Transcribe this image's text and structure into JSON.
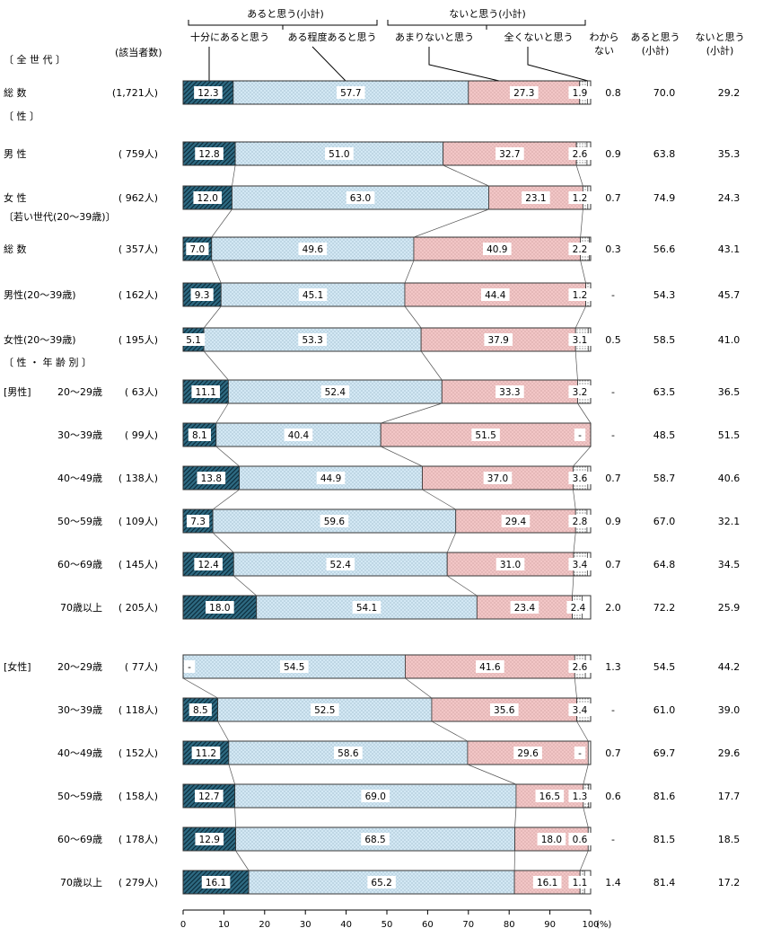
{
  "chart_data": {
    "type": "bar",
    "orientation": "horizontal",
    "stacked": true,
    "percent_stacked": true,
    "xlim": [
      0,
      100
    ],
    "x_ticks": [
      "0",
      "10",
      "20",
      "30",
      "40",
      "50",
      "60",
      "70",
      "80",
      "90",
      "100"
    ],
    "x_unit": "(%)",
    "header": {
      "respondents_label": "(該当者数)",
      "group_aru": "あると思う(小計)",
      "group_nai": "ないと思う(小計)",
      "col_aru_subtotal": [
        "あると思う",
        "(小計)"
      ],
      "col_nai_subtotal": [
        "ないと思う",
        "(小計)"
      ],
      "col_wakaranai": [
        "わから",
        "ない"
      ]
    },
    "series": [
      {
        "name": "十分にあると思う",
        "color": "#2e6a82",
        "pattern": "diagonal"
      },
      {
        "name": "ある程度あると思う",
        "color": "#d3e8f4",
        "pattern": "dots"
      },
      {
        "name": "あまりないと思う",
        "color": "#f2c6c6",
        "pattern": "dots"
      },
      {
        "name": "全くないと思う",
        "color": "#ffffff",
        "pattern": "dots"
      }
    ],
    "sections": [
      {
        "label": "〔 全 世 代 〕",
        "rows": [
          {
            "category": "総 数",
            "n": "(1,721人)",
            "values": [
              "12.3",
              "57.7",
              "27.3",
              "1.9"
            ],
            "dont_know": "0.8",
            "aru_total": "70.0",
            "nai_total": "29.2"
          }
        ]
      },
      {
        "label": "〔 性 〕",
        "rows": [
          {
            "category": "男 性",
            "n": "( 759人)",
            "values": [
              "12.8",
              "51.0",
              "32.7",
              "2.6"
            ],
            "dont_know": "0.9",
            "aru_total": "63.8",
            "nai_total": "35.3"
          },
          {
            "category": "女 性",
            "n": "( 962人)",
            "values": [
              "12.0",
              "63.0",
              "23.1",
              "1.2"
            ],
            "dont_know": "0.7",
            "aru_total": "74.9",
            "nai_total": "24.3"
          }
        ]
      },
      {
        "label": "〔若い世代(20～39歳)〕",
        "rows": [
          {
            "category": "総 数",
            "n": "( 357人)",
            "values": [
              "7.0",
              "49.6",
              "40.9",
              "2.2"
            ],
            "dont_know": "0.3",
            "aru_total": "56.6",
            "nai_total": "43.1"
          },
          {
            "category": "男性(20～39歳)",
            "n": "( 162人)",
            "values": [
              "9.3",
              "45.1",
              "44.4",
              "1.2"
            ],
            "dont_know": "-",
            "aru_total": "54.3",
            "nai_total": "45.7"
          },
          {
            "category": "女性(20～39歳)",
            "n": "( 195人)",
            "values": [
              "5.1",
              "53.3",
              "37.9",
              "3.1"
            ],
            "dont_know": "0.5",
            "aru_total": "58.5",
            "nai_total": "41.0"
          }
        ]
      },
      {
        "label": "〔 性 ・ 年 齢 別 〕",
        "rows": [
          {
            "group": "[男性]",
            "category": "20～29歳",
            "n": "(  63人)",
            "values": [
              "11.1",
              "52.4",
              "33.3",
              "3.2"
            ],
            "dont_know": "-",
            "aru_total": "63.5",
            "nai_total": "36.5"
          },
          {
            "category": "30～39歳",
            "n": "(  99人)",
            "values": [
              "8.1",
              "40.4",
              "51.5",
              "-"
            ],
            "dont_know": "-",
            "aru_total": "48.5",
            "nai_total": "51.5"
          },
          {
            "category": "40～49歳",
            "n": "( 138人)",
            "values": [
              "13.8",
              "44.9",
              "37.0",
              "3.6"
            ],
            "dont_know": "0.7",
            "aru_total": "58.7",
            "nai_total": "40.6"
          },
          {
            "category": "50～59歳",
            "n": "( 109人)",
            "values": [
              "7.3",
              "59.6",
              "29.4",
              "2.8"
            ],
            "dont_know": "0.9",
            "aru_total": "67.0",
            "nai_total": "32.1"
          },
          {
            "category": "60～69歳",
            "n": "( 145人)",
            "values": [
              "12.4",
              "52.4",
              "31.0",
              "3.4"
            ],
            "dont_know": "0.7",
            "aru_total": "64.8",
            "nai_total": "34.5"
          },
          {
            "category": "70歳以上",
            "n": "( 205人)",
            "values": [
              "18.0",
              "54.1",
              "23.4",
              "2.4"
            ],
            "dont_know": "2.0",
            "aru_total": "72.2",
            "nai_total": "25.9"
          },
          {
            "group": "[女性]",
            "category": "20～29歳",
            "n": "(  77人)",
            "values": [
              "-",
              "54.5",
              "41.6",
              "2.6"
            ],
            "dont_know": "1.3",
            "aru_total": "54.5",
            "nai_total": "44.2"
          },
          {
            "category": "30～39歳",
            "n": "( 118人)",
            "values": [
              "8.5",
              "52.5",
              "35.6",
              "3.4"
            ],
            "dont_know": "-",
            "aru_total": "61.0",
            "nai_total": "39.0"
          },
          {
            "category": "40～49歳",
            "n": "( 152人)",
            "values": [
              "11.2",
              "58.6",
              "29.6",
              "-"
            ],
            "dont_know": "0.7",
            "aru_total": "69.7",
            "nai_total": "29.6"
          },
          {
            "category": "50～59歳",
            "n": "( 158人)",
            "values": [
              "12.7",
              "69.0",
              "16.5",
              "1.3"
            ],
            "dont_know": "0.6",
            "aru_total": "81.6",
            "nai_total": "17.7"
          },
          {
            "category": "60～69歳",
            "n": "( 178人)",
            "values": [
              "12.9",
              "68.5",
              "18.0",
              "0.6"
            ],
            "dont_know": "-",
            "aru_total": "81.5",
            "nai_total": "18.5"
          },
          {
            "category": "70歳以上",
            "n": "( 279人)",
            "values": [
              "16.1",
              "65.2",
              "16.1",
              "1.1"
            ],
            "dont_know": "1.4",
            "aru_total": "81.4",
            "nai_total": "17.2"
          }
        ]
      }
    ]
  }
}
